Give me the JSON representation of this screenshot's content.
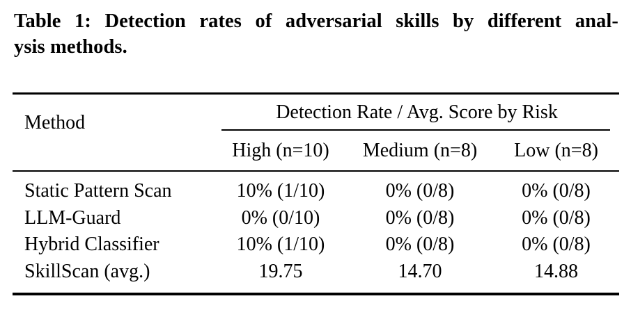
{
  "colors": {
    "background": "#ffffff",
    "text": "#000000",
    "rule": "#000000"
  },
  "caption": {
    "line1": "Table 1: Detection rates of adversarial skills by different anal-",
    "line2": "ysis methods.",
    "full_text": "Table 1: Detection rates of adversarial skills by different analysis methods."
  },
  "table": {
    "method_header": "Method",
    "group_header": "Detection Rate / Avg. Score by Risk",
    "sub_headers": [
      "High (n=10)",
      "Medium (n=8)",
      "Low (n=8)"
    ],
    "rows": [
      {
        "method": "Static Pattern Scan",
        "values": [
          "10% (1/10)",
          "0% (0/8)",
          "0% (0/8)"
        ]
      },
      {
        "method": "LLM-Guard",
        "values": [
          "0% (0/10)",
          "0% (0/8)",
          "0% (0/8)"
        ]
      },
      {
        "method": "Hybrid Classifier",
        "values": [
          "10% (1/10)",
          "0% (0/8)",
          "0% (0/8)"
        ]
      },
      {
        "method": "SkillScan (avg.)",
        "values": [
          "19.75",
          "14.70",
          "14.88"
        ]
      }
    ]
  },
  "chart_data": {
    "type": "table",
    "title": "Table 1: Detection rates of adversarial skills by different analysis methods.",
    "column_group": "Detection Rate / Avg. Score by Risk",
    "columns": [
      "Method",
      "High (n=10)",
      "Medium (n=8)",
      "Low (n=8)"
    ],
    "rows": [
      [
        "Static Pattern Scan",
        "10% (1/10)",
        "0% (0/8)",
        "0% (0/8)"
      ],
      [
        "LLM-Guard",
        "0% (0/10)",
        "0% (0/8)",
        "0% (0/8)"
      ],
      [
        "Hybrid Classifier",
        "10% (1/10)",
        "0% (0/8)",
        "0% (0/8)"
      ],
      [
        "SkillScan (avg.)",
        "19.75",
        "14.70",
        "14.88"
      ]
    ]
  }
}
